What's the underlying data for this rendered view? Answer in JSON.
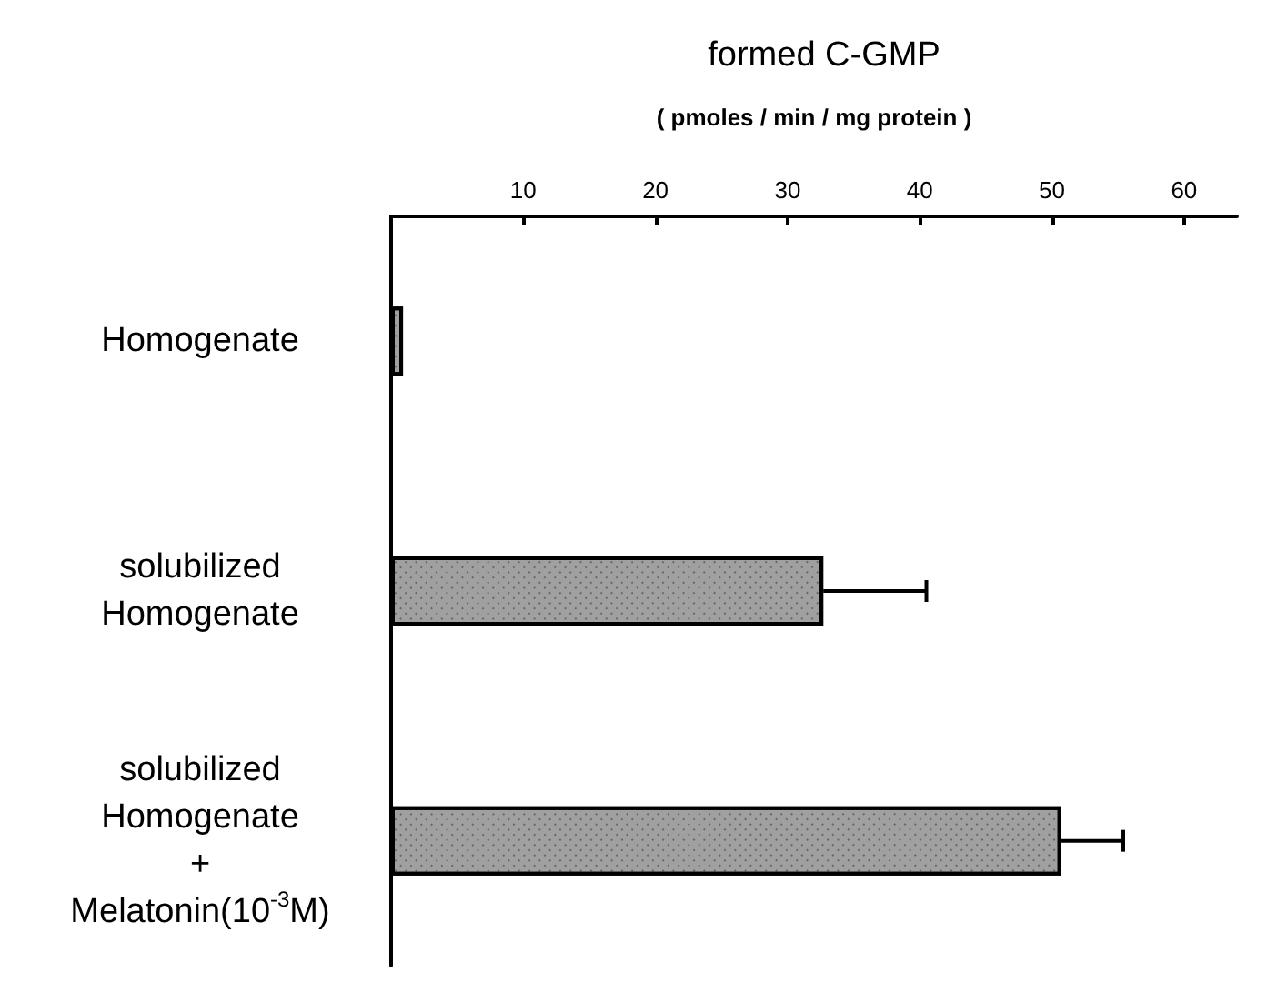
{
  "chart_data": {
    "type": "bar",
    "orientation": "horizontal",
    "title": "formed C-GMP",
    "xlabel": "( pmoles / min / mg protein )",
    "categories": [
      "Homogenate",
      "solubilized\nHomogenate",
      "solubilized\nHomogenate\n+\nMelatonin(10$^{-3}$M)"
    ],
    "values": [
      0.9,
      32.7,
      50.7
    ],
    "errors": [
      null,
      [
        32.7,
        40.5
      ],
      [
        50.7,
        55.4
      ]
    ],
    "color": "#a0a0a0",
    "xlim": [
      0,
      64
    ],
    "xticks": [
      10,
      20,
      30,
      40,
      50,
      60
    ],
    "grid": false
  }
}
